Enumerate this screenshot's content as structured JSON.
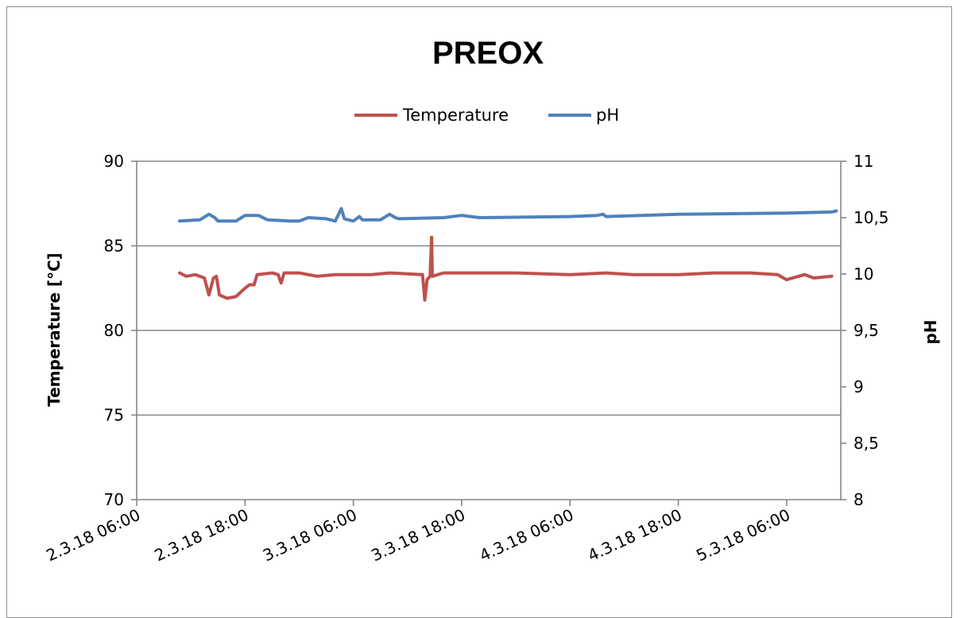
{
  "chart_data": {
    "type": "line",
    "title": "PREOX",
    "ylabel_left": "Temperature [°C]",
    "ylabel_right": "pH",
    "xlabel": "",
    "legend_position": "top",
    "grid": true,
    "xlim": [
      "2.3.18 06:00",
      "5.3.18 12:00"
    ],
    "ylim_left": [
      70,
      90
    ],
    "ylim_right": [
      8,
      11
    ],
    "x_ticks": [
      "2.3.18 06:00",
      "2.3.18 18:00",
      "3.3.18 06:00",
      "3.3.18 18:00",
      "4.3.18 06:00",
      "4.3.18 18:00",
      "5.3.18 06:00"
    ],
    "y_ticks_left": [
      "70",
      "75",
      "80",
      "85",
      "90"
    ],
    "y_ticks_right": [
      "8",
      "8,5",
      "9",
      "9,5",
      "10",
      "10,5",
      "11"
    ],
    "colors": {
      "Temperature": "#c0504d",
      "pH": "#4f81bd"
    },
    "series": [
      {
        "name": "Temperature",
        "axis": "left",
        "points": [
          [
            "2.3.18 10:45",
            83.4
          ],
          [
            "2.3.18 11:30",
            83.2
          ],
          [
            "2.3.18 12:30",
            83.3
          ],
          [
            "2.3.18 13:30",
            83.1
          ],
          [
            "2.3.18 14:00",
            82.1
          ],
          [
            "2.3.18 14:30",
            83.1
          ],
          [
            "2.3.18 14:50",
            83.2
          ],
          [
            "2.3.18 15:10",
            82.1
          ],
          [
            "2.3.18 16:00",
            81.9
          ],
          [
            "2.3.18 17:00",
            82.0
          ],
          [
            "2.3.18 18:00",
            82.5
          ],
          [
            "2.3.18 18:30",
            82.7
          ],
          [
            "2.3.18 19:00",
            82.7
          ],
          [
            "2.3.18 19:20",
            83.3
          ],
          [
            "2.3.18 21:00",
            83.4
          ],
          [
            "2.3.18 21:40",
            83.3
          ],
          [
            "2.3.18 22:00",
            82.8
          ],
          [
            "2.3.18 22:20",
            83.4
          ],
          [
            "3.3.18 00:00",
            83.4
          ],
          [
            "3.3.18 02:00",
            83.2
          ],
          [
            "3.3.18 04:00",
            83.3
          ],
          [
            "3.3.18 06:00",
            83.3
          ],
          [
            "3.3.18 08:00",
            83.3
          ],
          [
            "3.3.18 10:00",
            83.4
          ],
          [
            "3.3.18 13:40",
            83.3
          ],
          [
            "3.3.18 13:55",
            81.8
          ],
          [
            "3.3.18 14:10",
            83.0
          ],
          [
            "3.3.18 14:30",
            83.2
          ],
          [
            "3.3.18 14:40",
            85.5
          ],
          [
            "3.3.18 14:45",
            83.2
          ],
          [
            "3.3.18 16:00",
            83.4
          ],
          [
            "3.3.18 20:00",
            83.4
          ],
          [
            "4.3.18 00:00",
            83.4
          ],
          [
            "4.3.18 06:00",
            83.3
          ],
          [
            "4.3.18 10:00",
            83.4
          ],
          [
            "4.3.18 13:00",
            83.3
          ],
          [
            "4.3.18 18:00",
            83.3
          ],
          [
            "4.3.18 22:00",
            83.4
          ],
          [
            "5.3.18 02:00",
            83.4
          ],
          [
            "5.3.18 05:00",
            83.3
          ],
          [
            "5.3.18 06:00",
            83.0
          ],
          [
            "5.3.18 08:00",
            83.3
          ],
          [
            "5.3.18 09:00",
            83.1
          ],
          [
            "5.3.18 11:00",
            83.2
          ]
        ]
      },
      {
        "name": "pH",
        "axis": "right",
        "points": [
          [
            "2.3.18 10:45",
            10.47
          ],
          [
            "2.3.18 13:00",
            10.48
          ],
          [
            "2.3.18 14:00",
            10.53
          ],
          [
            "2.3.18 14:40",
            10.5
          ],
          [
            "2.3.18 15:00",
            10.47
          ],
          [
            "2.3.18 17:00",
            10.47
          ],
          [
            "2.3.18 18:00",
            10.52
          ],
          [
            "2.3.18 19:30",
            10.52
          ],
          [
            "2.3.18 20:30",
            10.48
          ],
          [
            "2.3.18 23:00",
            10.47
          ],
          [
            "3.3.18 00:00",
            10.47
          ],
          [
            "3.3.18 01:00",
            10.5
          ],
          [
            "3.3.18 03:00",
            10.49
          ],
          [
            "3.3.18 04:00",
            10.47
          ],
          [
            "3.3.18 04:40",
            10.58
          ],
          [
            "3.3.18 05:00",
            10.49
          ],
          [
            "3.3.18 06:00",
            10.47
          ],
          [
            "3.3.18 06:40",
            10.51
          ],
          [
            "3.3.18 07:00",
            10.48
          ],
          [
            "3.3.18 09:00",
            10.48
          ],
          [
            "3.3.18 10:00",
            10.53
          ],
          [
            "3.3.18 10:40",
            10.5
          ],
          [
            "3.3.18 11:00",
            10.49
          ],
          [
            "3.3.18 16:00",
            10.5
          ],
          [
            "3.3.18 18:00",
            10.52
          ],
          [
            "3.3.18 20:00",
            10.5
          ],
          [
            "4.3.18 06:00",
            10.51
          ],
          [
            "4.3.18 09:00",
            10.52
          ],
          [
            "4.3.18 09:40",
            10.53
          ],
          [
            "4.3.18 10:00",
            10.51
          ],
          [
            "4.3.18 18:00",
            10.53
          ],
          [
            "5.3.18 06:00",
            10.54
          ],
          [
            "5.3.18 11:00",
            10.55
          ],
          [
            "5.3.18 11:30",
            10.56
          ]
        ]
      }
    ]
  }
}
